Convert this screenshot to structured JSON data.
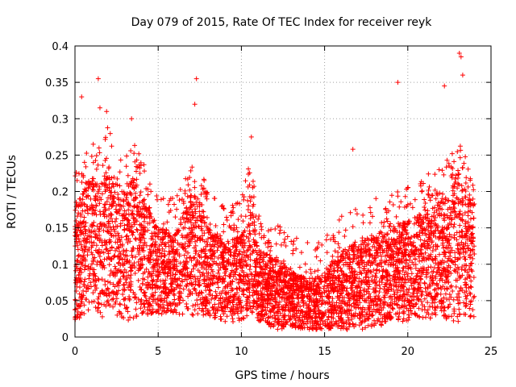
{
  "chart_data": {
    "type": "scatter",
    "title": "Day 079 of 2015, Rate Of TEC Index for receiver reyk",
    "xlabel": "GPS time / hours",
    "ylabel": "ROTI / TECUs",
    "xlim": [
      0,
      25
    ],
    "ylim": [
      0,
      0.4
    ],
    "xticks": [
      0,
      5,
      10,
      15,
      20,
      25
    ],
    "xtick_labels": [
      "0",
      "5",
      "10",
      "15",
      "20",
      "25"
    ],
    "yticks": [
      0,
      0.05,
      0.1,
      0.15,
      0.2,
      0.25,
      0.3,
      0.35,
      0.4
    ],
    "ytick_labels": [
      "0",
      "0.05",
      "0.1",
      "0.15",
      "0.2",
      "0.25",
      "0.3",
      "0.35",
      "0.4"
    ],
    "grid": true,
    "marker": "+",
    "series": [
      {
        "name": "ROTI",
        "color": "#ff0000",
        "envelope_hours": [
          0,
          0.5,
          1,
          1.5,
          2,
          2.5,
          3,
          3.5,
          4,
          5,
          6,
          7,
          7.5,
          8,
          9,
          10,
          10.5,
          11,
          12,
          13,
          14,
          15,
          16,
          17,
          18,
          19,
          20,
          21,
          22,
          22.5,
          23,
          23.5,
          24
        ],
        "envelope_upper_typical": [
          0.18,
          0.2,
          0.22,
          0.21,
          0.24,
          0.2,
          0.2,
          0.22,
          0.2,
          0.15,
          0.14,
          0.2,
          0.19,
          0.15,
          0.13,
          0.14,
          0.2,
          0.12,
          0.11,
          0.09,
          0.08,
          0.09,
          0.12,
          0.13,
          0.14,
          0.15,
          0.16,
          0.17,
          0.19,
          0.2,
          0.22,
          0.2,
          0.2
        ],
        "envelope_lower_typical": [
          0.02,
          0.03,
          0.04,
          0.03,
          0.02,
          0.03,
          0.02,
          0.02,
          0.03,
          0.03,
          0.03,
          0.03,
          0.03,
          0.03,
          0.02,
          0.02,
          0.03,
          0.02,
          0.01,
          0.01,
          0.01,
          0.01,
          0.01,
          0.01,
          0.01,
          0.02,
          0.02,
          0.02,
          0.03,
          0.02,
          0.02,
          0.03,
          0.02
        ],
        "peaks": [
          {
            "x": 0.4,
            "y": 0.33
          },
          {
            "x": 1.4,
            "y": 0.355
          },
          {
            "x": 1.5,
            "y": 0.315
          },
          {
            "x": 1.9,
            "y": 0.31
          },
          {
            "x": 3.4,
            "y": 0.3
          },
          {
            "x": 7.3,
            "y": 0.355
          },
          {
            "x": 7.2,
            "y": 0.32
          },
          {
            "x": 10.6,
            "y": 0.275
          },
          {
            "x": 16.7,
            "y": 0.258
          },
          {
            "x": 19.4,
            "y": 0.35
          },
          {
            "x": 22.2,
            "y": 0.345
          },
          {
            "x": 23.1,
            "y": 0.39
          },
          {
            "x": 23.2,
            "y": 0.385
          },
          {
            "x": 23.3,
            "y": 0.36
          }
        ]
      }
    ]
  }
}
